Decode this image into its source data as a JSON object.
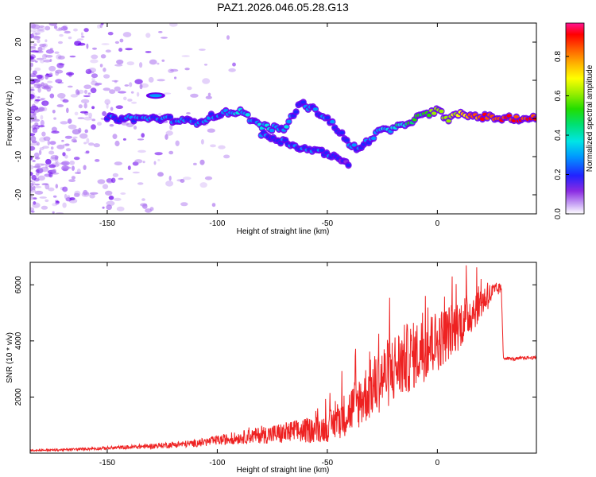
{
  "title": "PAZ1.2026.046.05.28.G13",
  "colors": {
    "snr_line": "#ee2222",
    "ridge_blob": "#6a00ee",
    "noise_blob": "#b07af0",
    "axis": "#000000"
  },
  "chart_data": [
    {
      "type": "heatmap",
      "name": "spectrogram",
      "xlabel": "Height of straight line (km)",
      "ylabel": "Frequency (Hz)",
      "xlim": [
        -185,
        45
      ],
      "ylim": [
        -25,
        25
      ],
      "xticks": [
        -150,
        -100,
        -50,
        0
      ],
      "yticks": [
        -20,
        -10,
        0,
        10,
        20
      ],
      "colorbar": {
        "label": "Normalized spectral amplitude",
        "range": [
          0,
          0.97
        ],
        "ticks": [
          "0.0",
          "0.2",
          "0.4",
          "0.6",
          "0.8"
        ]
      },
      "ridge": {
        "x": [
          -150,
          -140,
          -125,
          -110,
          -100,
          -90,
          -80,
          -70,
          -62,
          -55,
          -50,
          -45,
          -40,
          -35,
          -30,
          -25,
          -20,
          -10,
          -5,
          0,
          5,
          10,
          20,
          30,
          45
        ],
        "y": [
          0,
          0,
          0,
          -1,
          1,
          2,
          -2,
          -3,
          4,
          2,
          0,
          -3,
          -7,
          -8,
          -5,
          -3,
          -3,
          0,
          1,
          2,
          0,
          1,
          0.5,
          0,
          0
        ],
        "amp": [
          0.25,
          0.3,
          0.3,
          0.3,
          0.32,
          0.35,
          0.35,
          0.35,
          0.3,
          0.32,
          0.3,
          0.28,
          0.3,
          0.3,
          0.32,
          0.4,
          0.4,
          0.55,
          0.6,
          0.7,
          0.65,
          0.8,
          0.9,
          0.95,
          0.95
        ]
      },
      "branch": {
        "x": [
          -80,
          -70,
          -60,
          -50,
          -45,
          -40
        ],
        "y": [
          -4,
          -6,
          -8,
          -9,
          -11,
          -12
        ],
        "amp": [
          0.3,
          0.3,
          0.28,
          0.28,
          0.25,
          0.22
        ]
      },
      "side_blob": {
        "x": -128,
        "y": 6,
        "amp": 0.3
      },
      "noise_region": [
        -185,
        -110
      ]
    },
    {
      "type": "line",
      "name": "snr",
      "xlabel": "Height of straight line (km)",
      "ylabel": "SNR (10 * v/v)",
      "xlim": [
        -185,
        45
      ],
      "ylim": [
        0,
        6800
      ],
      "xticks": [
        -150,
        -100,
        -50,
        0
      ],
      "yticks": [
        2000,
        4000,
        6000
      ],
      "series": [
        {
          "name": "SNR",
          "x": [
            -185,
            -170,
            -150,
            -130,
            -110,
            -100,
            -90,
            -80,
            -70,
            -60,
            -50,
            -45,
            -40,
            -35,
            -30,
            -25,
            -20,
            -15,
            -10,
            -5,
            0,
            5,
            10,
            15,
            20,
            25,
            29,
            30,
            35,
            40,
            45
          ],
          "y": [
            100,
            120,
            180,
            250,
            350,
            450,
            550,
            650,
            700,
            800,
            900,
            1200,
            1500,
            1900,
            2300,
            2700,
            3000,
            3300,
            3500,
            3800,
            4000,
            4300,
            4600,
            5000,
            5400,
            5700,
            5900,
            3400,
            3350,
            3400,
            3400
          ],
          "noise": [
            30,
            40,
            60,
            90,
            130,
            180,
            220,
            300,
            400,
            450,
            500,
            700,
            850,
            1000,
            1100,
            1200,
            1300,
            1300,
            1200,
            1200,
            1100,
            1000,
            900,
            800,
            600,
            400,
            150,
            60,
            60,
            60,
            60
          ]
        }
      ]
    }
  ]
}
